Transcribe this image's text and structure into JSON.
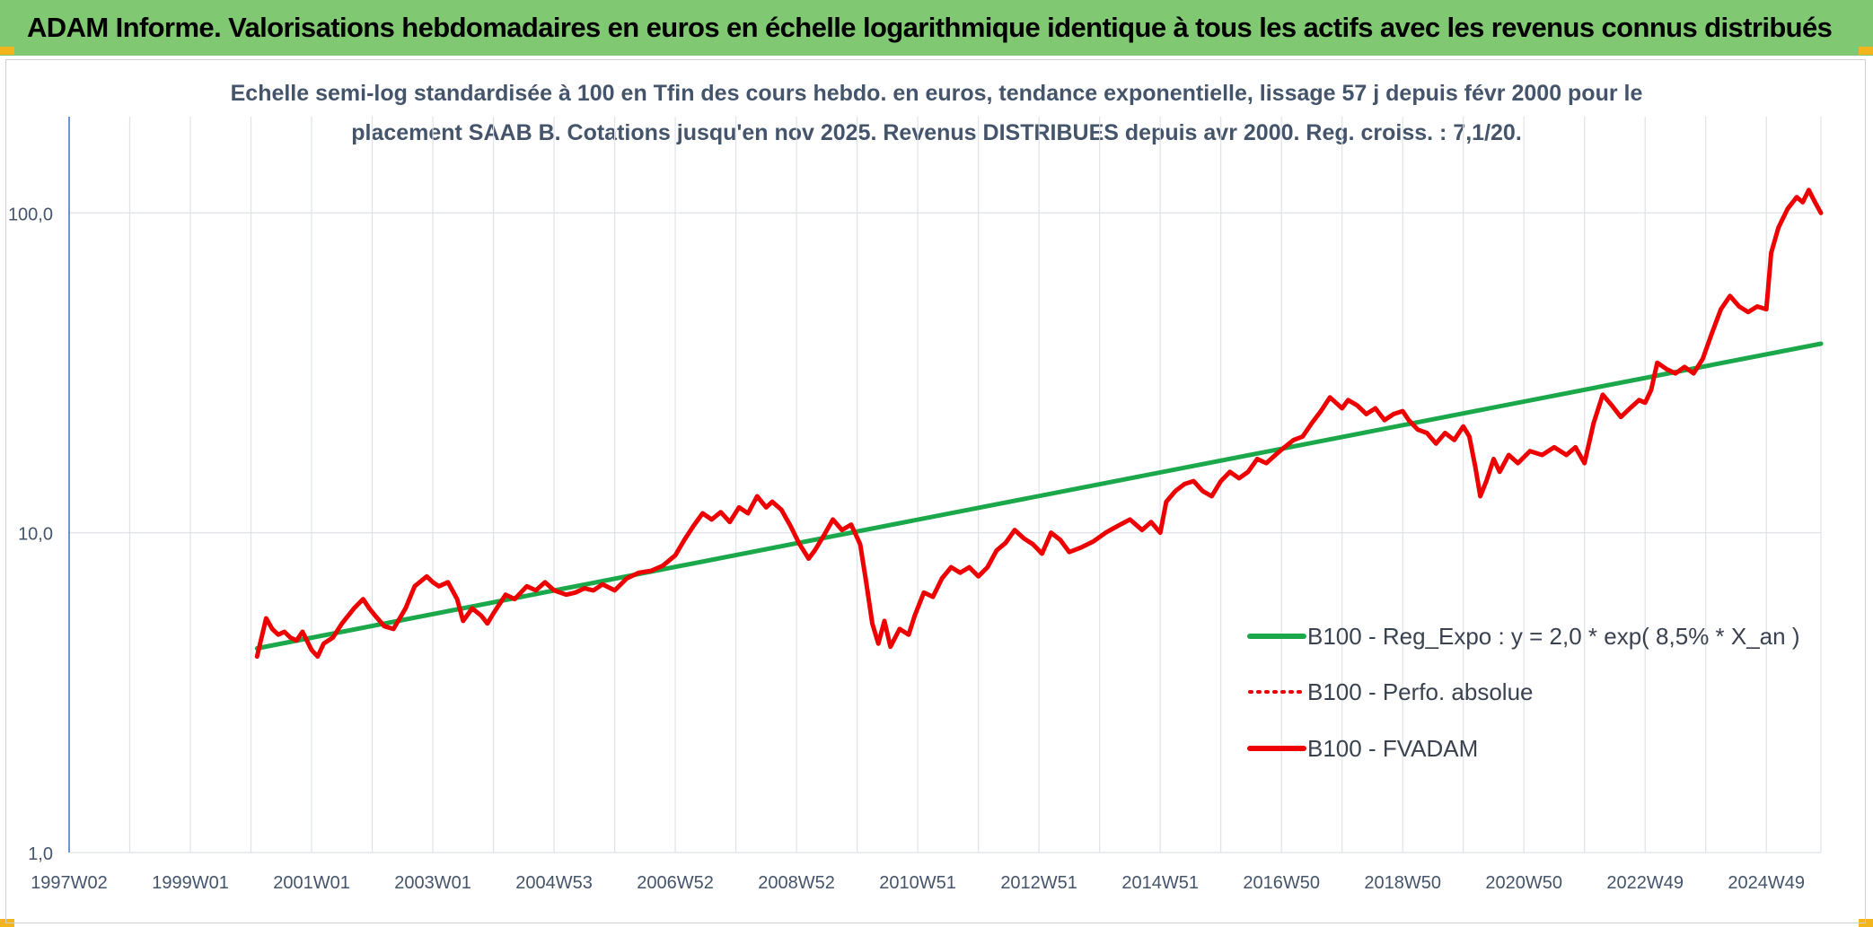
{
  "header": {
    "title": "ADAM Informe. Valorisations hebdomadaires en euros en échelle logarithmique identique à tous les actifs avec les revenus connus distribués"
  },
  "subtitle": {
    "line1": "Echelle semi-log standardisée à 100 en Tfin des cours hebdo. en euros, tendance exponentielle, lissage 57 j depuis févr 2000 pour le",
    "line2": "placement SAAB B. Cotations jusqu'en nov 2025. Revenus DISTRIBUES depuis avr 2000. Reg. croiss. : 7,1/20."
  },
  "colors": {
    "banner": "#80c972",
    "trend": "#1aa84a",
    "series": "#ee0000",
    "grid": "#dfe3e8",
    "axis": "#4472c4",
    "text": "#44546a"
  },
  "chart_data": {
    "type": "line",
    "y_scale": "log",
    "ylim": [
      1,
      200
    ],
    "y_ticks": [
      {
        "value": 1,
        "label": "1,0"
      },
      {
        "value": 10,
        "label": "10,0"
      },
      {
        "value": 100,
        "label": "100,0"
      }
    ],
    "x_range": [
      1997.0,
      2025.9
    ],
    "x_ticks": [
      {
        "value": 1997.0,
        "label": "1997W02"
      },
      {
        "value": 1999.0,
        "label": "1999W01"
      },
      {
        "value": 2001.0,
        "label": "2001W01"
      },
      {
        "value": 2003.0,
        "label": "2003W01"
      },
      {
        "value": 2005.0,
        "label": "2004W53"
      },
      {
        "value": 2007.0,
        "label": "2006W52"
      },
      {
        "value": 2009.0,
        "label": "2008W52"
      },
      {
        "value": 2011.0,
        "label": "2010W51"
      },
      {
        "value": 2013.0,
        "label": "2012W51"
      },
      {
        "value": 2015.0,
        "label": "2014W51"
      },
      {
        "value": 2017.0,
        "label": "2016W50"
      },
      {
        "value": 2019.0,
        "label": "2018W50"
      },
      {
        "value": 2021.0,
        "label": "2020W50"
      },
      {
        "value": 2023.0,
        "label": "2022W49"
      },
      {
        "value": 2025.0,
        "label": "2024W49"
      }
    ],
    "grid": true,
    "legend_position": "right",
    "series": [
      {
        "name": "B100 - Reg_Expo : y = 2,0 * exp( 8,5% *  X_an )",
        "style": "solid",
        "color": "#1aa84a",
        "points": [
          [
            2000.1,
            4.35
          ],
          [
            2025.9,
            39.0
          ]
        ]
      },
      {
        "name": "B100 - Perfo. absolue",
        "style": "dotted",
        "color": "#ee0000",
        "points": []
      },
      {
        "name": "B100 - FVADAM",
        "style": "solid",
        "color": "#ee0000",
        "points": [
          [
            2000.1,
            4.1
          ],
          [
            2000.15,
            4.5
          ],
          [
            2000.25,
            5.4
          ],
          [
            2000.35,
            5.0
          ],
          [
            2000.45,
            4.8
          ],
          [
            2000.55,
            4.9
          ],
          [
            2000.65,
            4.7
          ],
          [
            2000.75,
            4.6
          ],
          [
            2000.85,
            4.9
          ],
          [
            2001.0,
            4.3
          ],
          [
            2001.1,
            4.1
          ],
          [
            2001.2,
            4.5
          ],
          [
            2001.35,
            4.7
          ],
          [
            2001.5,
            5.2
          ],
          [
            2001.7,
            5.8
          ],
          [
            2001.85,
            6.2
          ],
          [
            2001.95,
            5.8
          ],
          [
            2002.05,
            5.5
          ],
          [
            2002.2,
            5.1
          ],
          [
            2002.35,
            5.0
          ],
          [
            2002.55,
            5.8
          ],
          [
            2002.7,
            6.8
          ],
          [
            2002.9,
            7.3
          ],
          [
            2003.0,
            7.0
          ],
          [
            2003.1,
            6.8
          ],
          [
            2003.25,
            7.0
          ],
          [
            2003.4,
            6.2
          ],
          [
            2003.5,
            5.3
          ],
          [
            2003.65,
            5.8
          ],
          [
            2003.8,
            5.5
          ],
          [
            2003.9,
            5.2
          ],
          [
            2004.0,
            5.6
          ],
          [
            2004.2,
            6.4
          ],
          [
            2004.35,
            6.2
          ],
          [
            2004.55,
            6.8
          ],
          [
            2004.7,
            6.6
          ],
          [
            2004.85,
            7.0
          ],
          [
            2005.0,
            6.6
          ],
          [
            2005.2,
            6.4
          ],
          [
            2005.35,
            6.5
          ],
          [
            2005.5,
            6.7
          ],
          [
            2005.65,
            6.6
          ],
          [
            2005.8,
            6.9
          ],
          [
            2006.0,
            6.6
          ],
          [
            2006.2,
            7.2
          ],
          [
            2006.4,
            7.5
          ],
          [
            2006.6,
            7.6
          ],
          [
            2006.8,
            7.9
          ],
          [
            2007.0,
            8.5
          ],
          [
            2007.15,
            9.5
          ],
          [
            2007.3,
            10.5
          ],
          [
            2007.45,
            11.5
          ],
          [
            2007.6,
            11.0
          ],
          [
            2007.75,
            11.6
          ],
          [
            2007.9,
            10.8
          ],
          [
            2008.05,
            12.0
          ],
          [
            2008.2,
            11.5
          ],
          [
            2008.35,
            13.0
          ],
          [
            2008.5,
            12.0
          ],
          [
            2008.6,
            12.5
          ],
          [
            2008.75,
            11.8
          ],
          [
            2008.9,
            10.5
          ],
          [
            2009.05,
            9.2
          ],
          [
            2009.2,
            8.3
          ],
          [
            2009.3,
            8.8
          ],
          [
            2009.45,
            9.8
          ],
          [
            2009.6,
            11.0
          ],
          [
            2009.75,
            10.2
          ],
          [
            2009.9,
            10.6
          ],
          [
            2010.05,
            9.2
          ],
          [
            2010.15,
            7.0
          ],
          [
            2010.25,
            5.2
          ],
          [
            2010.35,
            4.5
          ],
          [
            2010.45,
            5.3
          ],
          [
            2010.55,
            4.4
          ],
          [
            2010.7,
            5.0
          ],
          [
            2010.85,
            4.8
          ],
          [
            2010.95,
            5.5
          ],
          [
            2011.1,
            6.5
          ],
          [
            2011.25,
            6.3
          ],
          [
            2011.4,
            7.2
          ],
          [
            2011.55,
            7.8
          ],
          [
            2011.7,
            7.5
          ],
          [
            2011.85,
            7.8
          ],
          [
            2012.0,
            7.3
          ],
          [
            2012.15,
            7.8
          ],
          [
            2012.3,
            8.8
          ],
          [
            2012.45,
            9.3
          ],
          [
            2012.6,
            10.2
          ],
          [
            2012.75,
            9.6
          ],
          [
            2012.9,
            9.2
          ],
          [
            2013.05,
            8.6
          ],
          [
            2013.2,
            10.0
          ],
          [
            2013.35,
            9.5
          ],
          [
            2013.5,
            8.7
          ],
          [
            2013.7,
            9.0
          ],
          [
            2013.9,
            9.4
          ],
          [
            2014.1,
            10.0
          ],
          [
            2014.3,
            10.5
          ],
          [
            2014.5,
            11.0
          ],
          [
            2014.7,
            10.2
          ],
          [
            2014.85,
            10.8
          ],
          [
            2015.0,
            10.0
          ],
          [
            2015.1,
            12.5
          ],
          [
            2015.25,
            13.5
          ],
          [
            2015.4,
            14.2
          ],
          [
            2015.55,
            14.5
          ],
          [
            2015.7,
            13.5
          ],
          [
            2015.85,
            13.0
          ],
          [
            2016.0,
            14.5
          ],
          [
            2016.15,
            15.5
          ],
          [
            2016.3,
            14.8
          ],
          [
            2016.45,
            15.5
          ],
          [
            2016.6,
            17.0
          ],
          [
            2016.75,
            16.5
          ],
          [
            2016.9,
            17.5
          ],
          [
            2017.05,
            18.5
          ],
          [
            2017.2,
            19.5
          ],
          [
            2017.35,
            20.0
          ],
          [
            2017.5,
            22.0
          ],
          [
            2017.65,
            24.0
          ],
          [
            2017.8,
            26.5
          ],
          [
            2017.9,
            25.5
          ],
          [
            2018.0,
            24.5
          ],
          [
            2018.1,
            26.0
          ],
          [
            2018.25,
            25.0
          ],
          [
            2018.4,
            23.5
          ],
          [
            2018.55,
            24.5
          ],
          [
            2018.7,
            22.5
          ],
          [
            2018.85,
            23.5
          ],
          [
            2019.0,
            24.0
          ],
          [
            2019.1,
            22.5
          ],
          [
            2019.25,
            21.0
          ],
          [
            2019.4,
            20.5
          ],
          [
            2019.55,
            19.0
          ],
          [
            2019.7,
            20.5
          ],
          [
            2019.85,
            19.5
          ],
          [
            2020.0,
            21.5
          ],
          [
            2020.1,
            20.0
          ],
          [
            2020.2,
            16.0
          ],
          [
            2020.28,
            13.0
          ],
          [
            2020.38,
            14.5
          ],
          [
            2020.5,
            17.0
          ],
          [
            2020.6,
            15.5
          ],
          [
            2020.75,
            17.5
          ],
          [
            2020.9,
            16.5
          ],
          [
            2021.1,
            18.0
          ],
          [
            2021.3,
            17.5
          ],
          [
            2021.5,
            18.5
          ],
          [
            2021.7,
            17.5
          ],
          [
            2021.85,
            18.5
          ],
          [
            2022.0,
            16.5
          ],
          [
            2022.15,
            22.0
          ],
          [
            2022.3,
            27.0
          ],
          [
            2022.45,
            25.0
          ],
          [
            2022.6,
            23.0
          ],
          [
            2022.75,
            24.5
          ],
          [
            2022.9,
            26.0
          ],
          [
            2023.0,
            25.5
          ],
          [
            2023.1,
            28.0
          ],
          [
            2023.2,
            34.0
          ],
          [
            2023.35,
            32.5
          ],
          [
            2023.5,
            31.5
          ],
          [
            2023.65,
            33.0
          ],
          [
            2023.8,
            31.5
          ],
          [
            2023.95,
            35.0
          ],
          [
            2024.1,
            42.0
          ],
          [
            2024.25,
            50.0
          ],
          [
            2024.4,
            55.0
          ],
          [
            2024.55,
            51.0
          ],
          [
            2024.7,
            49.0
          ],
          [
            2024.85,
            51.0
          ],
          [
            2025.0,
            50.0
          ],
          [
            2025.08,
            75.0
          ],
          [
            2025.2,
            90.0
          ],
          [
            2025.35,
            103.0
          ],
          [
            2025.5,
            112.0
          ],
          [
            2025.6,
            108.0
          ],
          [
            2025.7,
            118.0
          ],
          [
            2025.78,
            110.0
          ],
          [
            2025.85,
            104.0
          ],
          [
            2025.9,
            100.0
          ]
        ]
      }
    ]
  }
}
